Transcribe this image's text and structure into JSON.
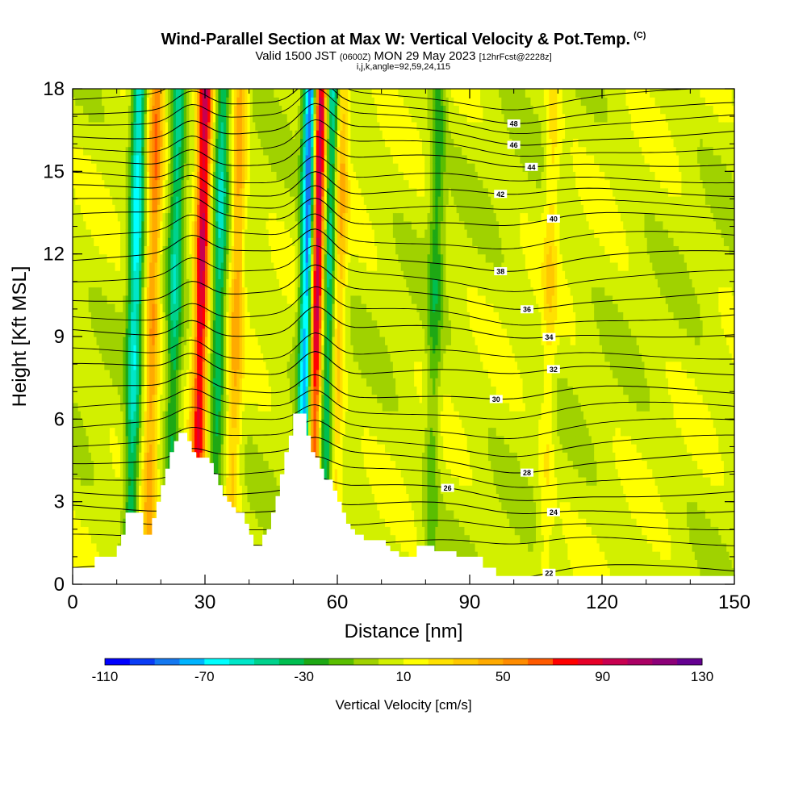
{
  "header": {
    "title": "Wind-Parallel Section at Max W: Vertical Velocity & Pot.Temp.",
    "copyright_mark": "(C)",
    "valid_prefix": "Valid 1500 JST",
    "valid_utc": "(0600Z)",
    "valid_date": "MON 29 May 2023",
    "forecast": "[12hrFcst@2228z]",
    "indices": "i,j,k,angle=92,59,24,115"
  },
  "colorbar": {
    "label": "Vertical Velocity [cm/s]",
    "tick_labels": [
      "-110",
      "-70",
      "-30",
      "10",
      "50",
      "90",
      "130"
    ],
    "colors": [
      "#0000ff",
      "#0a3cf5",
      "#1478f0",
      "#00b4ff",
      "#00ffff",
      "#00e6c8",
      "#00d28c",
      "#00be50",
      "#1ea814",
      "#5abe00",
      "#a0d200",
      "#d2f000",
      "#ffff00",
      "#ffe100",
      "#ffc800",
      "#ffaa00",
      "#ff8c00",
      "#ff5a00",
      "#ff0000",
      "#e60028",
      "#c80050",
      "#aa0064",
      "#8c0078",
      "#640090"
    ]
  },
  "chart_data": {
    "type": "heatmap",
    "title": "Wind-Parallel Section at Max W: Vertical Velocity & Pot.Temp.",
    "xlabel": "Distance [nm]",
    "ylabel": "Height [Kft MSL]",
    "xlim": [
      0,
      150
    ],
    "ylim": [
      0,
      18
    ],
    "x_ticks": [
      "0",
      "30",
      "60",
      "90",
      "120",
      "150"
    ],
    "y_ticks": [
      "0",
      "3",
      "6",
      "9",
      "12",
      "15",
      "18"
    ],
    "colorbar_range": [
      -110,
      130
    ],
    "vertical_velocity_features": [
      {
        "x": 14,
        "sign": "down",
        "peak_cm_s": -70
      },
      {
        "x": 18,
        "sign": "up",
        "peak_cm_s": 50
      },
      {
        "x": 23,
        "sign": "down",
        "peak_cm_s": -50
      },
      {
        "x": 29,
        "sign": "up",
        "peak_cm_s": 90
      },
      {
        "x": 33,
        "sign": "down",
        "peak_cm_s": -50
      },
      {
        "x": 37,
        "sign": "up",
        "peak_cm_s": 40
      },
      {
        "x": 53,
        "sign": "down",
        "peak_cm_s": -110
      },
      {
        "x": 55,
        "sign": "up",
        "peak_cm_s": 110
      },
      {
        "x": 58,
        "sign": "down",
        "peak_cm_s": -60
      },
      {
        "x": 60,
        "sign": "up",
        "peak_cm_s": 40
      },
      {
        "x": 82,
        "sign": "down",
        "peak_cm_s": -30
      },
      {
        "x": 108,
        "sign": "up",
        "peak_cm_s": 20
      }
    ],
    "terrain_kft": [
      {
        "x": 0,
        "h": 0.6
      },
      {
        "x": 4,
        "h": 0.6
      },
      {
        "x": 5,
        "h": 1.0
      },
      {
        "x": 9,
        "h": 1.0
      },
      {
        "x": 10,
        "h": 1.4
      },
      {
        "x": 11,
        "h": 1.8
      },
      {
        "x": 12,
        "h": 2.6
      },
      {
        "x": 13,
        "h": 2.6
      },
      {
        "x": 14,
        "h": 2.6
      },
      {
        "x": 15,
        "h": 2.6
      },
      {
        "x": 16,
        "h": 1.8
      },
      {
        "x": 17,
        "h": 1.8
      },
      {
        "x": 18,
        "h": 2.4
      },
      {
        "x": 19,
        "h": 3.0
      },
      {
        "x": 20,
        "h": 3.6
      },
      {
        "x": 21,
        "h": 4.2
      },
      {
        "x": 22,
        "h": 4.8
      },
      {
        "x": 23,
        "h": 5.2
      },
      {
        "x": 24,
        "h": 5.5
      },
      {
        "x": 25,
        "h": 5.5
      },
      {
        "x": 26,
        "h": 5.2
      },
      {
        "x": 27,
        "h": 4.8
      },
      {
        "x": 28,
        "h": 4.6
      },
      {
        "x": 30,
        "h": 4.6
      },
      {
        "x": 31,
        "h": 4.4
      },
      {
        "x": 32,
        "h": 4.0
      },
      {
        "x": 33,
        "h": 3.6
      },
      {
        "x": 34,
        "h": 3.2
      },
      {
        "x": 35,
        "h": 3.0
      },
      {
        "x": 36,
        "h": 2.8
      },
      {
        "x": 37,
        "h": 2.6
      },
      {
        "x": 38,
        "h": 2.6
      },
      {
        "x": 39,
        "h": 2.2
      },
      {
        "x": 40,
        "h": 1.8
      },
      {
        "x": 41,
        "h": 1.4
      },
      {
        "x": 42,
        "h": 1.4
      },
      {
        "x": 43,
        "h": 1.8
      },
      {
        "x": 44,
        "h": 2.0
      },
      {
        "x": 45,
        "h": 2.6
      },
      {
        "x": 46,
        "h": 3.2
      },
      {
        "x": 47,
        "h": 4.0
      },
      {
        "x": 48,
        "h": 4.8
      },
      {
        "x": 49,
        "h": 5.4
      },
      {
        "x": 50,
        "h": 6.2
      },
      {
        "x": 52,
        "h": 6.2
      },
      {
        "x": 53,
        "h": 5.4
      },
      {
        "x": 54,
        "h": 4.8
      },
      {
        "x": 55,
        "h": 4.6
      },
      {
        "x": 56,
        "h": 4.2
      },
      {
        "x": 57,
        "h": 3.8
      },
      {
        "x": 58,
        "h": 3.8
      },
      {
        "x": 59,
        "h": 3.4
      },
      {
        "x": 60,
        "h": 3.0
      },
      {
        "x": 61,
        "h": 2.6
      },
      {
        "x": 62,
        "h": 2.2
      },
      {
        "x": 63,
        "h": 2.0
      },
      {
        "x": 64,
        "h": 1.8
      },
      {
        "x": 66,
        "h": 1.6
      },
      {
        "x": 70,
        "h": 1.6
      },
      {
        "x": 71,
        "h": 1.4
      },
      {
        "x": 72,
        "h": 1.2
      },
      {
        "x": 74,
        "h": 1.0
      },
      {
        "x": 76,
        "h": 1.0
      },
      {
        "x": 78,
        "h": 1.4
      },
      {
        "x": 81,
        "h": 1.4
      },
      {
        "x": 82,
        "h": 1.2
      },
      {
        "x": 86,
        "h": 1.2
      },
      {
        "x": 87,
        "h": 1.0
      },
      {
        "x": 92,
        "h": 1.0
      },
      {
        "x": 93,
        "h": 0.6
      },
      {
        "x": 95,
        "h": 0.6
      },
      {
        "x": 96,
        "h": 0.3
      },
      {
        "x": 150,
        "h": 0.3
      }
    ],
    "theta_contours": [
      {
        "label": "22",
        "base_kft": 0.5
      },
      {
        "label": "24",
        "base_kft": 2.8
      },
      {
        "label": "26",
        "base_kft": 3.4
      },
      {
        "label": "28",
        "base_kft": 4.6
      },
      {
        "label": "30",
        "base_kft": 7.0
      },
      {
        "label": "32",
        "base_kft": 7.8
      },
      {
        "label": "34",
        "base_kft": 9.2
      },
      {
        "label": "36",
        "base_kft": 10.5
      },
      {
        "label": "38",
        "base_kft": 11.9
      },
      {
        "label": "40",
        "base_kft": 13.3
      },
      {
        "label": "42",
        "base_kft": 14.3
      },
      {
        "label": "44",
        "base_kft": 15.4
      },
      {
        "label": "46",
        "base_kft": 16.4
      },
      {
        "label": "48",
        "base_kft": 17.3
      }
    ]
  }
}
